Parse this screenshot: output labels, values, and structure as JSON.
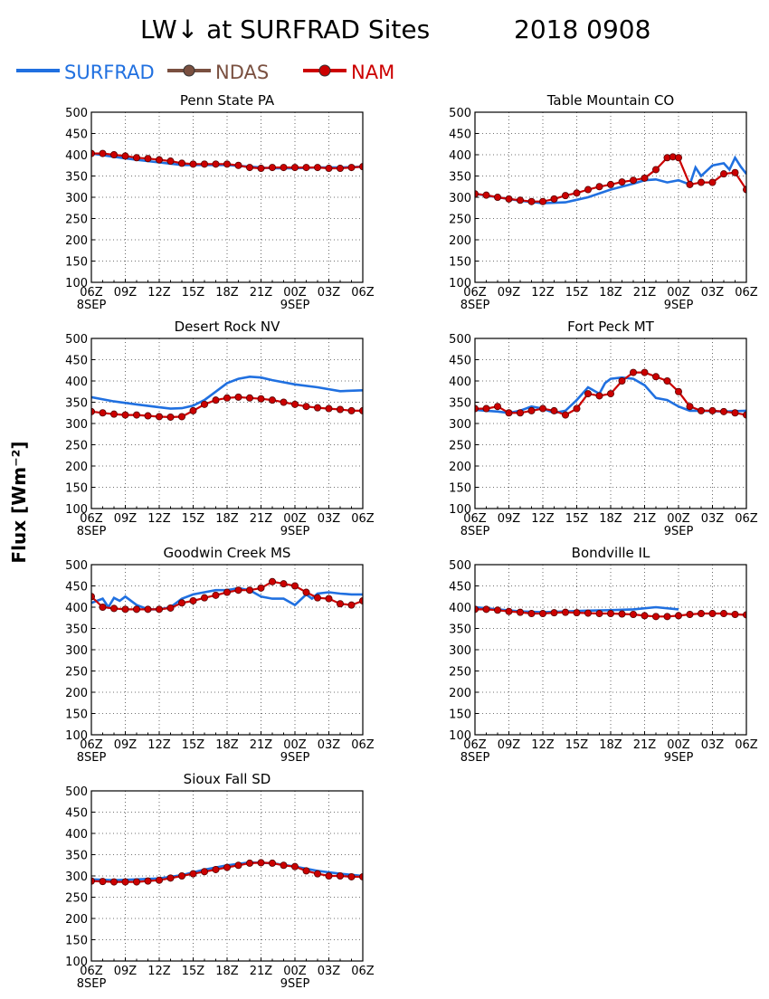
{
  "page": {
    "title_left": "LW↓ at SURFRAD Sites",
    "title_right": "2018 0908",
    "y_axis_label": "Flux [Wm⁻²]"
  },
  "legend": [
    {
      "name": "SURFRAD",
      "color": "#2070e0",
      "marker": false
    },
    {
      "name": "NDAS",
      "color": "#7a5040",
      "marker": true
    },
    {
      "name": "NAM",
      "color": "#cc0000",
      "marker": true
    }
  ],
  "axes": {
    "x_ticks": [
      "06Z",
      "09Z",
      "12Z",
      "15Z",
      "18Z",
      "21Z",
      "00Z",
      "03Z",
      "06Z"
    ],
    "x_date_start": "8SEP",
    "x_date_mid": "9SEP",
    "y_ticks": [
      100,
      150,
      200,
      250,
      300,
      350,
      400,
      450,
      500
    ],
    "ylim": [
      100,
      500
    ],
    "xlim_hours": [
      0,
      24
    ],
    "grid": true
  },
  "chart_data": [
    {
      "type": "line",
      "title": "Penn State PA",
      "series": [
        {
          "name": "SURFRAD",
          "x": [
            0,
            2,
            4,
            6,
            8,
            10,
            12,
            14,
            16,
            18,
            20,
            22,
            24
          ],
          "y": [
            403,
            395,
            388,
            382,
            376,
            376,
            376,
            372,
            368,
            368,
            370,
            370,
            372
          ]
        },
        {
          "name": "NAM",
          "x": [
            0,
            1,
            2,
            3,
            4,
            5,
            6,
            7,
            8,
            9,
            10,
            11,
            12,
            13,
            14,
            15,
            16,
            17,
            18,
            19,
            20,
            21,
            22,
            23,
            24
          ],
          "y": [
            403,
            403,
            400,
            397,
            393,
            391,
            388,
            385,
            380,
            378,
            378,
            378,
            378,
            375,
            370,
            368,
            370,
            370,
            370,
            370,
            370,
            368,
            368,
            370,
            372
          ]
        }
      ]
    },
    {
      "type": "line",
      "title": "Table Mountain CO",
      "series": [
        {
          "name": "SURFRAD",
          "x": [
            0,
            2,
            4,
            6,
            8,
            10,
            12,
            14,
            15,
            16,
            17,
            18,
            19,
            19.5,
            20,
            21,
            22,
            22.5,
            23,
            23.5,
            24
          ],
          "y": [
            308,
            300,
            292,
            286,
            288,
            300,
            318,
            332,
            340,
            342,
            335,
            340,
            330,
            370,
            350,
            375,
            380,
            365,
            393,
            372,
            355
          ]
        },
        {
          "name": "NAM",
          "x": [
            0,
            1,
            2,
            3,
            4,
            5,
            6,
            7,
            8,
            9,
            10,
            11,
            12,
            13,
            14,
            15,
            16,
            17,
            17.5,
            18,
            19,
            20,
            21,
            22,
            23,
            24
          ],
          "y": [
            308,
            305,
            300,
            296,
            293,
            290,
            290,
            296,
            304,
            310,
            318,
            325,
            330,
            336,
            340,
            345,
            365,
            393,
            395,
            393,
            330,
            335,
            335,
            355,
            358,
            318
          ]
        }
      ]
    },
    {
      "type": "line",
      "title": "Desert Rock NV",
      "series": [
        {
          "name": "SURFRAD",
          "x": [
            0,
            2,
            4,
            6,
            7,
            8,
            9,
            10,
            11,
            12,
            13,
            14,
            15,
            16,
            18,
            20,
            22,
            24
          ],
          "y": [
            362,
            352,
            345,
            338,
            335,
            336,
            342,
            355,
            375,
            395,
            405,
            410,
            408,
            402,
            392,
            385,
            376,
            378
          ]
        },
        {
          "name": "NAM",
          "x": [
            0,
            1,
            2,
            3,
            4,
            5,
            6,
            7,
            8,
            9,
            10,
            11,
            12,
            13,
            14,
            15,
            16,
            17,
            18,
            19,
            20,
            21,
            22,
            23,
            24
          ],
          "y": [
            328,
            325,
            322,
            320,
            320,
            318,
            316,
            315,
            316,
            330,
            345,
            355,
            360,
            362,
            360,
            358,
            355,
            350,
            345,
            340,
            337,
            335,
            333,
            330,
            330
          ]
        }
      ]
    },
    {
      "type": "line",
      "title": "Fort Peck MT",
      "series": [
        {
          "name": "SURFRAD",
          "x": [
            0,
            1,
            2,
            3,
            4,
            5,
            6,
            7,
            8,
            9,
            10,
            11,
            11.5,
            12,
            13,
            14,
            15,
            16,
            17,
            18,
            19,
            20,
            22,
            24
          ],
          "y": [
            332,
            330,
            328,
            325,
            330,
            340,
            335,
            325,
            330,
            355,
            385,
            370,
            395,
            405,
            408,
            405,
            390,
            360,
            355,
            340,
            330,
            330,
            328,
            330
          ]
        },
        {
          "name": "NAM",
          "x": [
            0,
            1,
            2,
            3,
            4,
            5,
            6,
            7,
            8,
            9,
            10,
            11,
            12,
            13,
            14,
            15,
            16,
            17,
            18,
            19,
            20,
            21,
            22,
            23,
            24
          ],
          "y": [
            335,
            335,
            340,
            325,
            325,
            330,
            335,
            330,
            320,
            335,
            370,
            365,
            370,
            400,
            420,
            420,
            410,
            400,
            375,
            340,
            330,
            330,
            328,
            325,
            320
          ]
        }
      ]
    },
    {
      "type": "line",
      "title": "Goodwin Creek MS",
      "series": [
        {
          "name": "SURFRAD",
          "x": [
            0,
            1,
            1.5,
            2,
            2.5,
            3,
            4,
            5,
            6,
            7,
            8,
            9,
            10,
            11,
            12,
            13,
            14,
            15,
            16,
            17,
            18,
            19,
            19.5,
            20,
            21,
            22,
            23,
            24
          ],
          "y": [
            410,
            420,
            400,
            422,
            415,
            425,
            405,
            395,
            395,
            400,
            420,
            430,
            435,
            440,
            440,
            445,
            440,
            425,
            420,
            420,
            405,
            430,
            420,
            432,
            435,
            432,
            430,
            430
          ]
        },
        {
          "name": "NAM",
          "x": [
            0,
            1,
            2,
            3,
            4,
            5,
            6,
            7,
            8,
            9,
            10,
            11,
            12,
            13,
            14,
            15,
            16,
            17,
            18,
            19,
            20,
            21,
            22,
            23,
            24
          ],
          "y": [
            425,
            400,
            397,
            395,
            395,
            395,
            395,
            398,
            410,
            415,
            422,
            428,
            435,
            440,
            440,
            445,
            460,
            455,
            450,
            435,
            422,
            420,
            408,
            405,
            415
          ]
        }
      ]
    },
    {
      "type": "line",
      "title": "Bondville IL",
      "series": [
        {
          "name": "SURFRAD",
          "x": [
            0,
            2,
            4,
            6,
            8,
            10,
            12,
            14,
            16,
            18
          ],
          "y": [
            400,
            395,
            390,
            388,
            390,
            392,
            393,
            395,
            400,
            395
          ]
        },
        {
          "name": "NAM",
          "x": [
            0,
            1,
            2,
            3,
            4,
            5,
            6,
            7,
            8,
            9,
            10,
            11,
            12,
            13,
            14,
            15,
            16,
            17,
            18,
            19,
            20,
            21,
            22,
            23,
            24
          ],
          "y": [
            395,
            395,
            393,
            390,
            388,
            385,
            385,
            387,
            388,
            387,
            386,
            385,
            385,
            384,
            383,
            380,
            378,
            378,
            380,
            383,
            385,
            385,
            385,
            383,
            382
          ]
        }
      ]
    },
    {
      "type": "line",
      "title": "Sioux Fall SD",
      "series": [
        {
          "name": "SURFRAD",
          "x": [
            0,
            2,
            4,
            6,
            8,
            10,
            12,
            14,
            16,
            18,
            20,
            22,
            24
          ],
          "y": [
            292,
            290,
            292,
            294,
            302,
            315,
            325,
            332,
            330,
            322,
            312,
            305,
            300
          ]
        },
        {
          "name": "NAM",
          "x": [
            0,
            1,
            2,
            3,
            4,
            5,
            6,
            7,
            8,
            9,
            10,
            11,
            12,
            13,
            14,
            15,
            16,
            17,
            18,
            19,
            20,
            21,
            22,
            23,
            24
          ],
          "y": [
            288,
            287,
            286,
            286,
            286,
            288,
            290,
            295,
            300,
            305,
            310,
            315,
            320,
            325,
            330,
            331,
            330,
            325,
            322,
            312,
            305,
            300,
            300,
            298,
            298
          ]
        }
      ]
    }
  ]
}
